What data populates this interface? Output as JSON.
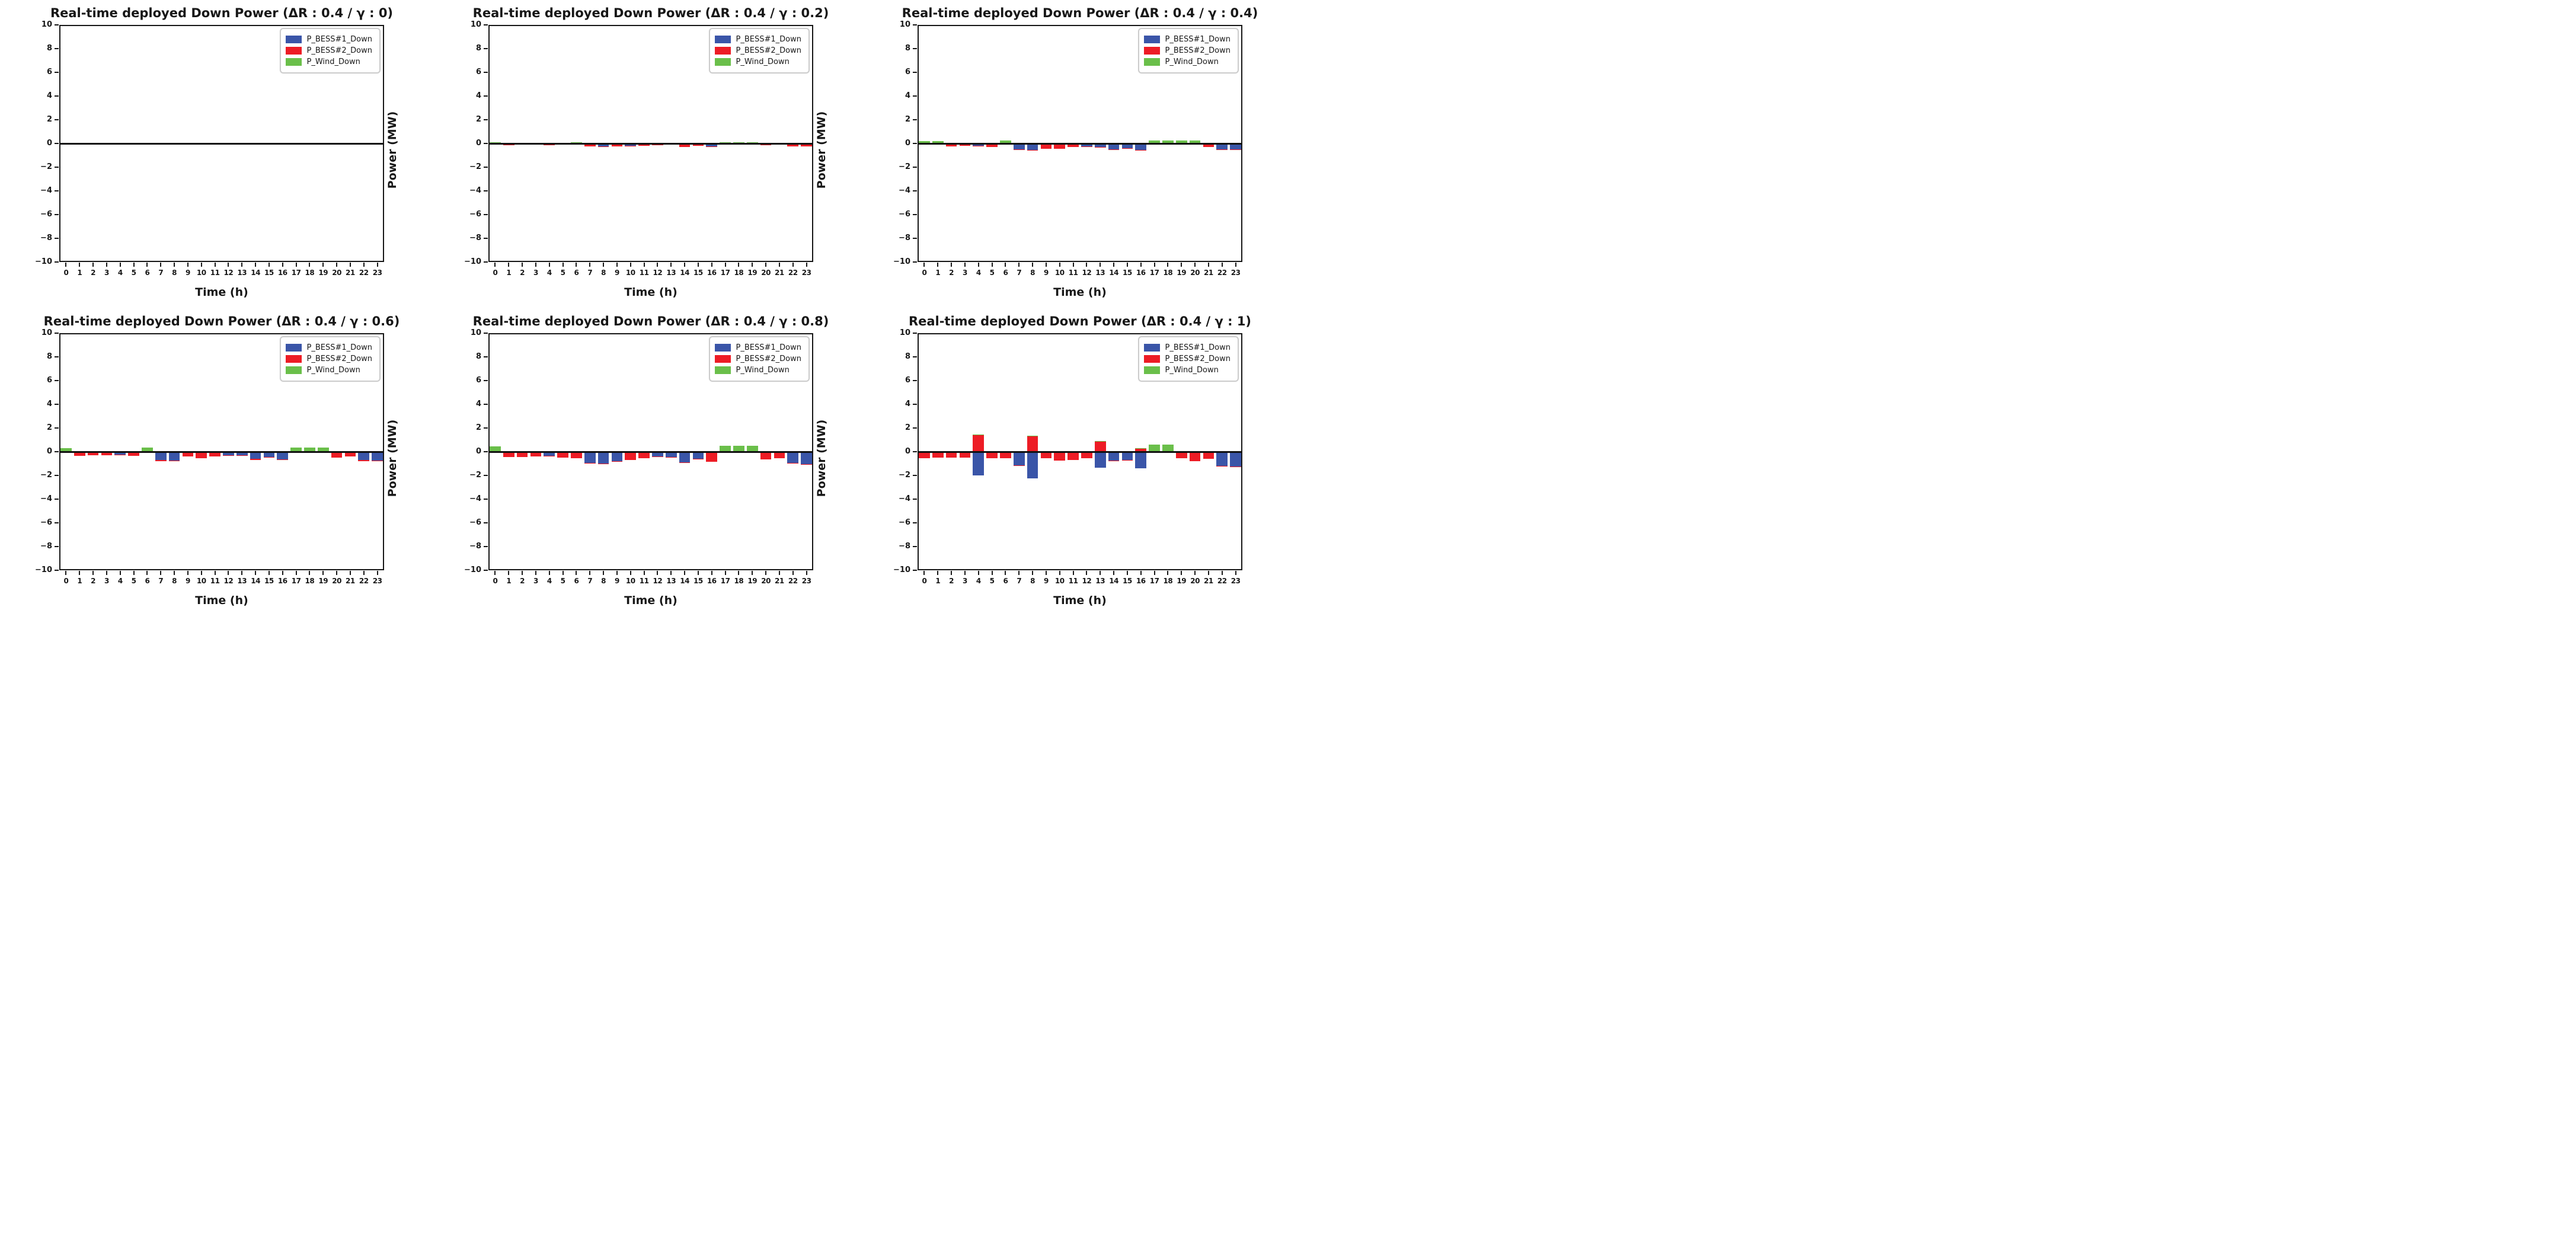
{
  "figure": {
    "background": "#ffffff",
    "grid": {
      "rows": 2,
      "cols": 3
    }
  },
  "chart_data": [
    {
      "type": "bar",
      "stacked": true,
      "title": "Real-time deployed Down Power (ΔR : 0.4 / γ : 0)",
      "params": {
        "delta_r": "0.4",
        "gamma": "0"
      },
      "xlabel": "Time (h)",
      "ylabel": "Power (MW)",
      "ylim": [
        -10,
        10
      ],
      "yticks": [
        10,
        8,
        6,
        4,
        2,
        0,
        -2,
        -4,
        -6,
        -8,
        -10
      ],
      "legend_position": "upper right",
      "grid_lines": false,
      "categories": [
        "0",
        "1",
        "2",
        "3",
        "4",
        "5",
        "6",
        "7",
        "8",
        "9",
        "10",
        "11",
        "12",
        "13",
        "14",
        "15",
        "16",
        "17",
        "18",
        "19",
        "20",
        "21",
        "22",
        "23"
      ],
      "series": [
        {
          "name": "P_BESS#1_Down",
          "color": "#3a55a8",
          "values": [
            0,
            0,
            0,
            0,
            0,
            0,
            0,
            0,
            0,
            0,
            0,
            0,
            0,
            0,
            0,
            0,
            0,
            0,
            0,
            0,
            0,
            0,
            0,
            0
          ]
        },
        {
          "name": "P_BESS#2_Down",
          "color": "#ed1c25",
          "values": [
            0,
            0,
            0,
            0,
            0,
            0,
            0,
            0,
            0,
            0,
            0,
            0,
            0,
            0,
            0,
            0,
            0,
            0,
            0,
            0,
            0,
            0,
            0,
            0
          ]
        },
        {
          "name": "P_Wind_Down",
          "color": "#6abf4a",
          "values": [
            0,
            0,
            0,
            0,
            0,
            0,
            0,
            0,
            0,
            0,
            0,
            0,
            0,
            0,
            0,
            0,
            0,
            0,
            0,
            0,
            0,
            0,
            0,
            0
          ]
        }
      ]
    },
    {
      "type": "bar",
      "stacked": true,
      "title": "Real-time deployed Down Power (ΔR : 0.4 / γ : 0.2)",
      "params": {
        "delta_r": "0.4",
        "gamma": "0.2"
      },
      "xlabel": "Time (h)",
      "ylabel": "Power (MW)",
      "ylim": [
        -10,
        10
      ],
      "yticks": [
        10,
        8,
        6,
        4,
        2,
        0,
        -2,
        -4,
        -6,
        -8,
        -10
      ],
      "legend_position": "upper right",
      "grid_lines": false,
      "categories": [
        "0",
        "1",
        "2",
        "3",
        "4",
        "5",
        "6",
        "7",
        "8",
        "9",
        "10",
        "11",
        "12",
        "13",
        "14",
        "15",
        "16",
        "17",
        "18",
        "19",
        "20",
        "21",
        "22",
        "23"
      ],
      "series": [
        {
          "name": "P_BESS#1_Down",
          "color": "#3a55a8",
          "values": [
            0,
            0,
            0,
            0,
            -0.12,
            0,
            0,
            0,
            -0.27,
            0,
            -0.22,
            0,
            -0.08,
            0,
            0,
            0,
            -0.27,
            0,
            0,
            0,
            0,
            0,
            0,
            0
          ]
        },
        {
          "name": "P_BESS#2_Down",
          "color": "#ed1c25",
          "values": [
            0,
            -0.15,
            -0.12,
            -0.12,
            -0.03,
            -0.12,
            0,
            -0.25,
            -0.04,
            -0.25,
            -0.04,
            -0.2,
            -0.03,
            -0.12,
            -0.28,
            -0.18,
            -0.04,
            0,
            0,
            0,
            -0.15,
            -0.12,
            -0.25,
            -0.25
          ]
        },
        {
          "name": "P_Wind_Down",
          "color": "#6abf4a",
          "values": [
            0.1,
            0,
            0,
            0,
            0,
            0,
            0.12,
            0,
            0,
            0,
            0,
            0,
            0,
            0,
            0,
            0,
            0,
            0.12,
            0.12,
            0.12,
            0,
            0,
            0,
            0
          ]
        }
      ]
    },
    {
      "type": "bar",
      "stacked": true,
      "title": "Real-time deployed Down Power (ΔR : 0.4 / γ : 0.4)",
      "params": {
        "delta_r": "0.4",
        "gamma": "0.4"
      },
      "xlabel": "Time (h)",
      "ylabel": "Power (MW)",
      "ylim": [
        -10,
        10
      ],
      "yticks": [
        10,
        8,
        6,
        4,
        2,
        0,
        -2,
        -4,
        -6,
        -8,
        -10
      ],
      "legend_position": "upper right",
      "grid_lines": false,
      "categories": [
        "0",
        "1",
        "2",
        "3",
        "4",
        "5",
        "6",
        "7",
        "8",
        "9",
        "10",
        "11",
        "12",
        "13",
        "14",
        "15",
        "16",
        "17",
        "18",
        "19",
        "20",
        "21",
        "22",
        "23"
      ],
      "series": [
        {
          "name": "P_BESS#1_Down",
          "color": "#3a55a8",
          "values": [
            0,
            0,
            0,
            0,
            -0.22,
            0,
            0,
            -0.48,
            -0.55,
            0,
            0,
            0,
            -0.25,
            -0.28,
            -0.5,
            -0.4,
            -0.55,
            0,
            0,
            0,
            0,
            0,
            -0.48,
            -0.5
          ]
        },
        {
          "name": "P_BESS#2_Down",
          "color": "#ed1c25",
          "values": [
            0,
            0,
            -0.25,
            -0.2,
            -0.04,
            -0.28,
            0,
            -0.05,
            -0.05,
            -0.45,
            -0.45,
            -0.3,
            -0.03,
            -0.04,
            -0.05,
            -0.03,
            -0.05,
            0,
            0,
            0,
            0,
            -0.3,
            -0.05,
            -0.05
          ]
        },
        {
          "name": "P_Wind_Down",
          "color": "#6abf4a",
          "values": [
            0.2,
            0.2,
            0,
            0,
            0,
            0,
            0.25,
            0,
            0,
            0,
            0,
            0,
            0,
            0,
            0,
            0,
            0,
            0.25,
            0.25,
            0.25,
            0.25,
            0,
            0,
            0
          ]
        }
      ]
    },
    {
      "type": "bar",
      "stacked": true,
      "title": "Real-time deployed Down Power (ΔR : 0.4 / γ : 0.6)",
      "params": {
        "delta_r": "0.4",
        "gamma": "0.6"
      },
      "xlabel": "Time (h)",
      "ylabel": "Power (MW)",
      "ylim": [
        -10,
        10
      ],
      "yticks": [
        10,
        8,
        6,
        4,
        2,
        0,
        -2,
        -4,
        -6,
        -8,
        -10
      ],
      "legend_position": "upper right",
      "grid_lines": false,
      "categories": [
        "0",
        "1",
        "2",
        "3",
        "4",
        "5",
        "6",
        "7",
        "8",
        "9",
        "10",
        "11",
        "12",
        "13",
        "14",
        "15",
        "16",
        "17",
        "18",
        "19",
        "20",
        "21",
        "22",
        "23"
      ],
      "series": [
        {
          "name": "P_BESS#1_Down",
          "color": "#3a55a8",
          "values": [
            0,
            0,
            0,
            0,
            -0.27,
            0,
            0,
            -0.72,
            -0.76,
            0,
            0,
            0,
            -0.28,
            -0.3,
            -0.62,
            -0.43,
            -0.64,
            0,
            0,
            0,
            0,
            0,
            -0.72,
            -0.76
          ]
        },
        {
          "name": "P_BESS#2_Down",
          "color": "#ed1c25",
          "values": [
            0,
            -0.35,
            -0.3,
            -0.3,
            -0.05,
            -0.35,
            0,
            -0.06,
            -0.06,
            -0.38,
            -0.55,
            -0.4,
            -0.04,
            -0.05,
            -0.06,
            -0.05,
            -0.06,
            0,
            0,
            0,
            -0.5,
            -0.42,
            -0.06,
            -0.06
          ]
        },
        {
          "name": "P_Wind_Down",
          "color": "#6abf4a",
          "values": [
            0.3,
            0,
            0,
            0,
            0,
            0,
            0.35,
            0,
            0,
            0,
            0,
            0,
            0,
            0,
            0,
            0,
            0,
            0.33,
            0.33,
            0.33,
            0,
            0,
            0,
            0
          ]
        }
      ]
    },
    {
      "type": "bar",
      "stacked": true,
      "title": "Real-time deployed Down Power (ΔR : 0.4 / γ : 0.8)",
      "params": {
        "delta_r": "0.4",
        "gamma": "0.8"
      },
      "xlabel": "Time (h)",
      "ylabel": "Power (MW)",
      "ylim": [
        -10,
        10
      ],
      "yticks": [
        10,
        8,
        6,
        4,
        2,
        0,
        -2,
        -4,
        -6,
        -8,
        -10
      ],
      "legend_position": "upper right",
      "grid_lines": false,
      "categories": [
        "0",
        "1",
        "2",
        "3",
        "4",
        "5",
        "6",
        "7",
        "8",
        "9",
        "10",
        "11",
        "12",
        "13",
        "14",
        "15",
        "16",
        "17",
        "18",
        "19",
        "20",
        "21",
        "22",
        "23"
      ],
      "series": [
        {
          "name": "P_BESS#1_Down",
          "color": "#3a55a8",
          "values": [
            0,
            0,
            0,
            0,
            -0.36,
            0,
            0,
            -0.95,
            -1.0,
            -0.78,
            0,
            0,
            -0.4,
            -0.45,
            -0.88,
            -0.58,
            0,
            0,
            0,
            0,
            0,
            0,
            -0.93,
            -1.03
          ]
        },
        {
          "name": "P_BESS#2_Down",
          "color": "#ed1c25",
          "values": [
            0,
            -0.45,
            -0.45,
            -0.42,
            -0.06,
            -0.48,
            -0.55,
            -0.07,
            -0.07,
            -0.07,
            -0.7,
            -0.55,
            -0.06,
            -0.06,
            -0.07,
            -0.07,
            -0.85,
            0,
            0,
            0,
            -0.65,
            -0.55,
            -0.07,
            -0.07
          ]
        },
        {
          "name": "P_Wind_Down",
          "color": "#6abf4a",
          "values": [
            0.45,
            0,
            0,
            0,
            0,
            0,
            0,
            0,
            0,
            0,
            0,
            0,
            0,
            0,
            0,
            0,
            0,
            0.5,
            0.5,
            0.5,
            0,
            0,
            0,
            0
          ]
        }
      ]
    },
    {
      "type": "bar",
      "stacked": true,
      "title": "Real-time deployed Down Power (ΔR : 0.4 / γ : 1)",
      "params": {
        "delta_r": "0.4",
        "gamma": "1"
      },
      "xlabel": "Time (h)",
      "ylabel": "Power (MW)",
      "ylim": [
        -10,
        10
      ],
      "yticks": [
        10,
        8,
        6,
        4,
        2,
        0,
        -2,
        -4,
        -6,
        -8,
        -10
      ],
      "legend_position": "upper right",
      "grid_lines": false,
      "categories": [
        "0",
        "1",
        "2",
        "3",
        "4",
        "5",
        "6",
        "7",
        "8",
        "9",
        "10",
        "11",
        "12",
        "13",
        "14",
        "15",
        "16",
        "17",
        "18",
        "19",
        "20",
        "21",
        "22",
        "23"
      ],
      "series": [
        {
          "name": "P_BESS#1_Down",
          "color": "#3a55a8",
          "values": [
            0,
            0,
            0,
            0,
            -1.98,
            0,
            0,
            -1.15,
            -2.27,
            0,
            0,
            0,
            0,
            -1.37,
            -0.73,
            -0.7,
            -1.38,
            0,
            0,
            0,
            0,
            0,
            -1.2,
            -1.25
          ]
        },
        {
          "name": "P_BESS#2_Down",
          "color": "#ed1c25",
          "values": [
            -0.55,
            -0.5,
            -0.5,
            -0.5,
            1.42,
            -0.55,
            -0.55,
            -0.05,
            1.32,
            -0.55,
            -0.75,
            -0.7,
            -0.55,
            0.86,
            -0.05,
            -0.05,
            0.28,
            0,
            0,
            -0.55,
            -0.8,
            -0.58,
            -0.05,
            -0.05
          ]
        },
        {
          "name": "P_Wind_Down",
          "color": "#6abf4a",
          "values": [
            0,
            0,
            0,
            0,
            0.05,
            0,
            0,
            0,
            0.05,
            0,
            0,
            0,
            0,
            0.04,
            0,
            0,
            0.03,
            0.6,
            0.58,
            0,
            0,
            0,
            0,
            0
          ]
        }
      ]
    }
  ]
}
